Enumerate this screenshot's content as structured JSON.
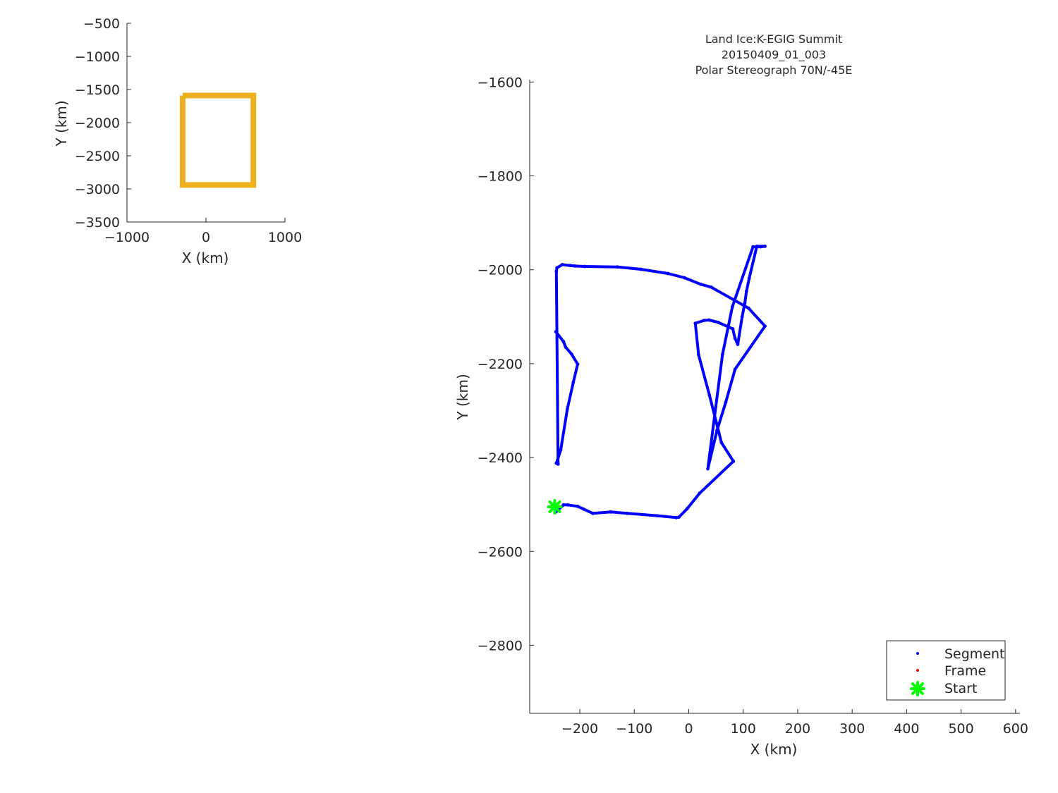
{
  "chart_data": [
    {
      "type": "line",
      "role": "overview-map",
      "title": "",
      "xlabel": "X (km)",
      "ylabel": "Y (km)",
      "xlim": [
        -1000,
        1000
      ],
      "ylim": [
        -3500,
        -500
      ],
      "xticks": [
        -1000,
        0,
        1000
      ],
      "yticks": [
        -3500,
        -3000,
        -2500,
        -2000,
        -1500,
        -1000,
        -500
      ],
      "xtick_labels": [
        "−1000",
        "0",
        "1000"
      ],
      "ytick_labels": [
        "−3500",
        "−3000",
        "−2500",
        "−2000",
        "−1500",
        "−1000",
        "−500"
      ],
      "grid": false,
      "series": [
        {
          "color": "#EDB120",
          "x": [
            -295,
            600,
            600,
            -295,
            -295
          ],
          "y": [
            -1590,
            -1590,
            -2940,
            -2940,
            -1590
          ]
        }
      ]
    },
    {
      "type": "scatter",
      "role": "flight-track",
      "title": [
        "Land Ice:K-EGIG Summit",
        "20150409_01_003",
        "Polar Stereograph 70N/-45E"
      ],
      "xlabel": "X (km)",
      "ylabel": "Y (km)",
      "xlim": [
        -292,
        608
      ],
      "ylim": [
        -2945,
        -1595
      ],
      "xticks": [
        -200,
        -100,
        0,
        100,
        200,
        300,
        400,
        500,
        600
      ],
      "yticks": [
        -2800,
        -2600,
        -2400,
        -2200,
        -2000,
        -1800,
        -1600
      ],
      "xtick_labels": [
        "−200",
        "−100",
        "0",
        "100",
        "200",
        "300",
        "400",
        "500",
        "600"
      ],
      "ytick_labels": [
        "−2800",
        "−2600",
        "−2400",
        "−2200",
        "−2000",
        "−1800",
        "−1600"
      ],
      "grid": false,
      "legend_position": "bottom-right",
      "series": [
        {
          "name": "Segment",
          "color": "#0000FF",
          "x": [
            -244,
            -230,
            -222,
            -204,
            -193,
            -176,
            -143,
            -113,
            -58,
            -23,
            -18,
            -3,
            20,
            82,
            60,
            38,
            18,
            12,
            28,
            37,
            54,
            81,
            85,
            90,
            98,
            103,
            106,
            111,
            125,
            140,
            132,
            118,
            80,
            62,
            35,
            52,
            68,
            85,
            140,
            110,
            41,
            22,
            -8,
            -38,
            -88,
            -131,
            -191,
            -209,
            -218,
            -232,
            -242,
            -243,
            -240,
            -243,
            -235,
            -223,
            -212,
            -204,
            -215,
            -226,
            -230,
            -244
          ],
          "y": [
            -2516,
            -2501,
            -2501,
            -2504,
            -2510,
            -2519,
            -2516,
            -2519,
            -2524,
            -2528,
            -2527,
            -2509,
            -2476,
            -2408,
            -2368,
            -2267,
            -2181,
            -2114,
            -2108,
            -2107,
            -2112,
            -2126,
            -2146,
            -2159,
            -2100,
            -2071,
            -2046,
            -2018,
            -1950,
            -1950,
            -1951,
            -1951,
            -2079,
            -2180,
            -2424,
            -2342,
            -2282,
            -2212,
            -2120,
            -2082,
            -2037,
            -2031,
            -2017,
            -2008,
            -1999,
            -1994,
            -1993,
            -1992,
            -1991,
            -1989,
            -1996,
            -2003,
            -2414,
            -2412,
            -2384,
            -2297,
            -2240,
            -2201,
            -2180,
            -2165,
            -2153,
            -2132
          ]
        },
        {
          "name": "Frame",
          "color": "#FF0000",
          "x": [],
          "y": []
        },
        {
          "name": "Start",
          "color": "#00FF00",
          "x": [
            -246
          ],
          "y": [
            -2505
          ]
        }
      ]
    }
  ]
}
